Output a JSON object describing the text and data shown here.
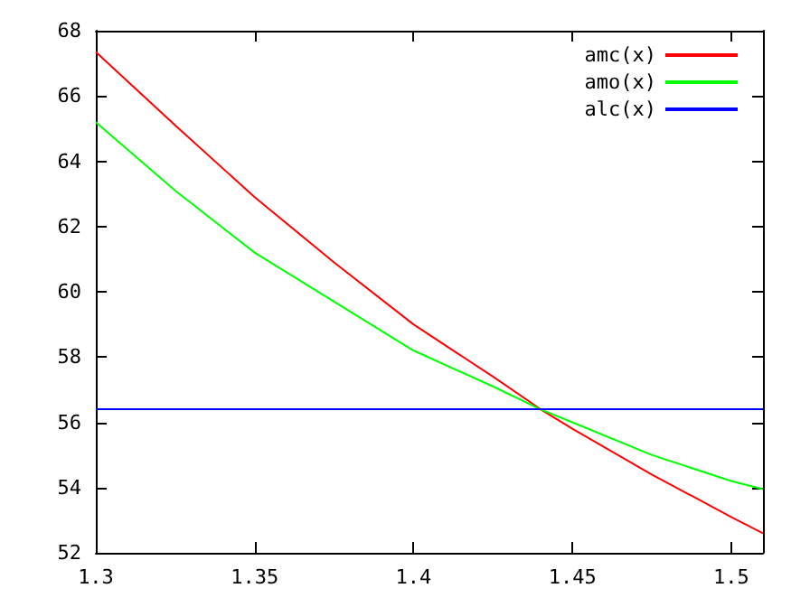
{
  "chart_data": {
    "type": "line",
    "x": [
      1.3,
      1.325,
      1.35,
      1.375,
      1.4,
      1.425,
      1.44,
      1.45,
      1.475,
      1.5,
      1.51
    ],
    "series": [
      {
        "name": "amc(x)",
        "color": "#ff0000",
        "values": [
          67.35,
          65.1,
          62.9,
          60.9,
          59.0,
          57.4,
          56.4,
          55.8,
          54.4,
          53.1,
          52.6
        ]
      },
      {
        "name": "amo(x)",
        "color": "#00ff00",
        "values": [
          65.2,
          63.1,
          61.2,
          59.7,
          58.2,
          57.1,
          56.4,
          56.0,
          55.0,
          54.2,
          53.95
        ]
      },
      {
        "name": "alc(x)",
        "color": "#0000ff",
        "values": [
          56.4,
          56.4,
          56.4,
          56.4,
          56.4,
          56.4,
          56.4,
          56.4,
          56.4,
          56.4,
          56.4
        ]
      }
    ],
    "xlim": [
      1.3,
      1.51
    ],
    "xticks": [
      1.3,
      1.35,
      1.4,
      1.45,
      1.5
    ],
    "ylim": [
      52,
      68
    ],
    "yticks": [
      52,
      54,
      56,
      58,
      60,
      62,
      64,
      66,
      68
    ],
    "grid": false,
    "legend": "top right",
    "marker": "none",
    "line_style": "solid"
  }
}
